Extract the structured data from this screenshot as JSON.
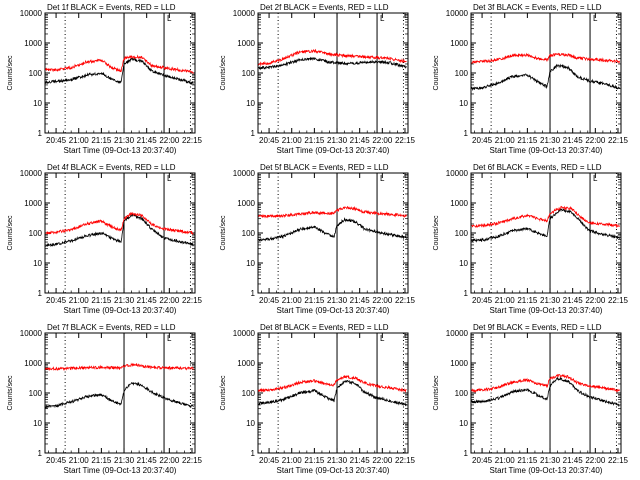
{
  "figure": {
    "date_label": "09-Oct-13",
    "colors": {
      "events": "#000000",
      "lld": "#ff0000",
      "axes": "#000000",
      "background": "#ffffff"
    }
  },
  "chart_data": [
    {
      "type": "line",
      "title": "Det 1f BLACK = Events, RED = LLD",
      "ylabel": "Counts/sec",
      "xlabel": "Start Time (09-Oct-13 20:37:40)",
      "y_scale": "log",
      "ylim": [
        1,
        10000
      ],
      "xlim": [
        "20:37:40",
        "22:17:00"
      ],
      "x_ticks": [
        "20:45",
        "21:00",
        "21:15",
        "21:30",
        "21:45",
        "22:00",
        "22:15"
      ],
      "y_ticks": [
        "1",
        "10",
        "100",
        "1000",
        "10000"
      ],
      "markers_solid": [
        "21:30:00",
        "21:56:30"
      ],
      "markers_dotted": [
        "20:51:00",
        "22:14:00"
      ],
      "corner_mark": "L",
      "series": [
        {
          "name": "Events",
          "color": "#000000",
          "x": [
            "20:38",
            "20:45",
            "20:55",
            "21:05",
            "21:15",
            "21:22",
            "21:28",
            "21:30",
            "21:35",
            "21:42",
            "21:48",
            "21:56",
            "22:05",
            "22:16"
          ],
          "values": [
            50,
            52,
            60,
            85,
            100,
            60,
            50,
            200,
            290,
            250,
            120,
            85,
            65,
            45
          ]
        },
        {
          "name": "LLD",
          "color": "#ff0000",
          "x": [
            "20:38",
            "20:45",
            "20:55",
            "21:05",
            "21:15",
            "21:22",
            "21:28",
            "21:30",
            "21:35",
            "21:42",
            "21:48",
            "21:56",
            "22:05",
            "22:16"
          ],
          "values": [
            130,
            125,
            150,
            230,
            270,
            150,
            120,
            300,
            350,
            330,
            180,
            150,
            130,
            105
          ]
        }
      ]
    },
    {
      "type": "line",
      "title": "Det 2f BLACK = Events, RED = LLD",
      "ylabel": "Counts/sec",
      "xlabel": "Start Time (09-Oct-13 20:37:40)",
      "y_scale": "log",
      "ylim": [
        1,
        10000
      ],
      "xlim": [
        "20:37:40",
        "22:17:00"
      ],
      "x_ticks": [
        "20:45",
        "21:00",
        "21:15",
        "21:30",
        "21:45",
        "22:00",
        "22:15"
      ],
      "y_ticks": [
        "1",
        "10",
        "100",
        "1000",
        "10000"
      ],
      "markers_solid": [
        "21:30:00",
        "21:56:30"
      ],
      "markers_dotted": [
        "20:51:00",
        "22:14:00"
      ],
      "corner_mark": "L",
      "series": [
        {
          "name": "Events",
          "color": "#000000",
          "x": [
            "20:38",
            "20:45",
            "20:55",
            "21:05",
            "21:15",
            "21:25",
            "21:35",
            "21:45",
            "21:56",
            "22:05",
            "22:16"
          ],
          "values": [
            150,
            155,
            190,
            270,
            300,
            230,
            210,
            220,
            240,
            220,
            160
          ]
        },
        {
          "name": "LLD",
          "color": "#ff0000",
          "x": [
            "20:38",
            "20:45",
            "20:55",
            "21:05",
            "21:15",
            "21:25",
            "21:35",
            "21:45",
            "21:56",
            "22:05",
            "22:16"
          ],
          "values": [
            200,
            210,
            300,
            500,
            550,
            430,
            380,
            350,
            330,
            300,
            240
          ]
        }
      ]
    },
    {
      "type": "line",
      "title": "Det 3f BLACK = Events, RED = LLD",
      "ylabel": "Counts/sec",
      "xlabel": "Start Time (09-Oct-13 20:37:40)",
      "y_scale": "log",
      "ylim": [
        1,
        10000
      ],
      "xlim": [
        "20:37:40",
        "22:17:00"
      ],
      "x_ticks": [
        "20:45",
        "21:00",
        "21:15",
        "21:30",
        "21:45",
        "22:00",
        "22:15"
      ],
      "y_ticks": [
        "1",
        "10",
        "100",
        "1000",
        "10000"
      ],
      "markers_solid": [
        "21:30:00",
        "21:56:30"
      ],
      "markers_dotted": [
        "20:51:00",
        "22:14:00"
      ],
      "corner_mark": "L",
      "series": [
        {
          "name": "Events",
          "color": "#000000",
          "x": [
            "20:38",
            "20:45",
            "20:55",
            "21:05",
            "21:15",
            "21:22",
            "21:28",
            "21:30",
            "21:35",
            "21:42",
            "21:48",
            "21:56",
            "22:05",
            "22:16"
          ],
          "values": [
            30,
            32,
            45,
            75,
            85,
            50,
            35,
            110,
            180,
            150,
            75,
            55,
            45,
            30
          ]
        },
        {
          "name": "LLD",
          "color": "#ff0000",
          "x": [
            "20:38",
            "20:45",
            "20:55",
            "21:05",
            "21:15",
            "21:22",
            "21:28",
            "21:30",
            "21:35",
            "21:42",
            "21:48",
            "21:56",
            "22:05",
            "22:16"
          ],
          "values": [
            230,
            240,
            280,
            380,
            400,
            300,
            270,
            380,
            420,
            400,
            320,
            290,
            270,
            240
          ]
        }
      ]
    },
    {
      "type": "line",
      "title": "Det 4f BLACK = Events, RED = LLD",
      "ylabel": "Counts/sec",
      "xlabel": "Start Time (09-Oct-13 20:37:40)",
      "y_scale": "log",
      "ylim": [
        1,
        10000
      ],
      "xlim": [
        "20:37:40",
        "22:17:00"
      ],
      "x_ticks": [
        "20:45",
        "21:00",
        "21:15",
        "21:30",
        "21:45",
        "22:00",
        "22:15"
      ],
      "y_ticks": [
        "1",
        "10",
        "100",
        "1000",
        "10000"
      ],
      "markers_solid": [
        "21:30:00",
        "21:56:30"
      ],
      "markers_dotted": [
        "20:51:00",
        "22:14:00"
      ],
      "corner_mark": "L",
      "series": [
        {
          "name": "Events",
          "color": "#000000",
          "x": [
            "20:38",
            "20:45",
            "20:55",
            "21:05",
            "21:15",
            "21:22",
            "21:28",
            "21:30",
            "21:35",
            "21:42",
            "21:48",
            "21:56",
            "22:05",
            "22:16"
          ],
          "values": [
            40,
            42,
            55,
            80,
            100,
            65,
            50,
            250,
            400,
            300,
            140,
            70,
            55,
            40
          ]
        },
        {
          "name": "LLD",
          "color": "#ff0000",
          "x": [
            "20:38",
            "20:45",
            "20:55",
            "21:05",
            "21:15",
            "21:22",
            "21:28",
            "21:30",
            "21:35",
            "21:42",
            "21:48",
            "21:56",
            "22:05",
            "22:16"
          ],
          "values": [
            100,
            105,
            130,
            200,
            250,
            160,
            120,
            300,
            450,
            380,
            200,
            140,
            120,
            100
          ]
        }
      ]
    },
    {
      "type": "line",
      "title": "Det 5f BLACK = Events, RED = LLD",
      "ylabel": "Counts/sec",
      "xlabel": "Start Time (09-Oct-13 20:37:40)",
      "y_scale": "log",
      "ylim": [
        1,
        10000
      ],
      "xlim": [
        "20:37:40",
        "22:17:00"
      ],
      "x_ticks": [
        "20:45",
        "21:00",
        "21:15",
        "21:30",
        "21:45",
        "22:00",
        "22:15"
      ],
      "y_ticks": [
        "1",
        "10",
        "100",
        "1000",
        "10000"
      ],
      "markers_solid": [
        "21:30:00",
        "21:56:30"
      ],
      "markers_dotted": [
        "20:51:00",
        "22:14:00"
      ],
      "corner_mark": "L",
      "series": [
        {
          "name": "Events",
          "color": "#000000",
          "x": [
            "20:38",
            "20:45",
            "20:55",
            "21:05",
            "21:15",
            "21:22",
            "21:28",
            "21:30",
            "21:35",
            "21:42",
            "21:48",
            "21:56",
            "22:05",
            "22:16"
          ],
          "values": [
            60,
            62,
            80,
            130,
            160,
            100,
            75,
            180,
            280,
            240,
            140,
            110,
            90,
            70
          ]
        },
        {
          "name": "LLD",
          "color": "#ff0000",
          "x": [
            "20:38",
            "20:45",
            "20:55",
            "21:05",
            "21:15",
            "21:22",
            "21:28",
            "21:30",
            "21:35",
            "21:42",
            "21:48",
            "21:56",
            "22:05",
            "22:16"
          ],
          "values": [
            360,
            360,
            380,
            430,
            480,
            460,
            450,
            560,
            700,
            650,
            500,
            460,
            420,
            370
          ]
        }
      ]
    },
    {
      "type": "line",
      "title": "Det 6f BLACK = Events, RED = LLD",
      "ylabel": "Counts/sec",
      "xlabel": "Start Time (09-Oct-13 20:37:40)",
      "y_scale": "log",
      "ylim": [
        1,
        10000
      ],
      "xlim": [
        "20:37:40",
        "22:17:00"
      ],
      "x_ticks": [
        "20:45",
        "21:00",
        "21:15",
        "21:30",
        "21:45",
        "22:00",
        "22:15"
      ],
      "y_ticks": [
        "1",
        "10",
        "100",
        "1000",
        "10000"
      ],
      "markers_solid": [
        "21:30:00",
        "21:56:30"
      ],
      "markers_dotted": [
        "20:51:00",
        "22:14:00"
      ],
      "corner_mark": "L",
      "series": [
        {
          "name": "Events",
          "color": "#000000",
          "x": [
            "20:38",
            "20:45",
            "20:55",
            "21:05",
            "21:15",
            "21:22",
            "21:28",
            "21:30",
            "21:37",
            "21:44",
            "21:50",
            "21:56",
            "22:05",
            "22:16"
          ],
          "values": [
            55,
            58,
            75,
            120,
            140,
            100,
            80,
            300,
            600,
            500,
            250,
            120,
            90,
            70
          ]
        },
        {
          "name": "LLD",
          "color": "#ff0000",
          "x": [
            "20:38",
            "20:45",
            "20:55",
            "21:05",
            "21:15",
            "21:22",
            "21:28",
            "21:30",
            "21:37",
            "21:44",
            "21:50",
            "21:56",
            "22:05",
            "22:16"
          ],
          "values": [
            170,
            175,
            210,
            300,
            380,
            300,
            250,
            450,
            700,
            650,
            350,
            220,
            200,
            170
          ]
        }
      ]
    },
    {
      "type": "line",
      "title": "Det 7f BLACK = Events, RED = LLD",
      "ylabel": "Counts/sec",
      "xlabel": "Start Time (09-Oct-13 20:37:40)",
      "y_scale": "log",
      "ylim": [
        1,
        10000
      ],
      "xlim": [
        "20:37:40",
        "22:17:00"
      ],
      "x_ticks": [
        "20:45",
        "21:00",
        "21:15",
        "21:30",
        "21:45",
        "22:00",
        "22:15"
      ],
      "y_ticks": [
        "1",
        "10",
        "100",
        "1000",
        "10000"
      ],
      "markers_solid": [
        "21:30:00",
        "21:56:30"
      ],
      "markers_dotted": [
        "20:51:00",
        "22:14:00"
      ],
      "corner_mark": "L",
      "series": [
        {
          "name": "Events",
          "color": "#000000",
          "x": [
            "20:38",
            "20:45",
            "20:55",
            "21:05",
            "21:15",
            "21:22",
            "21:28",
            "21:30",
            "21:35",
            "21:42",
            "21:48",
            "21:56",
            "22:05",
            "22:16"
          ],
          "values": [
            35,
            38,
            50,
            75,
            90,
            55,
            40,
            120,
            220,
            180,
            110,
            70,
            50,
            35
          ]
        },
        {
          "name": "LLD",
          "color": "#ff0000",
          "x": [
            "20:38",
            "20:45",
            "20:55",
            "21:05",
            "21:15",
            "21:22",
            "21:28",
            "21:30",
            "21:35",
            "21:42",
            "21:48",
            "21:56",
            "22:05",
            "22:16"
          ],
          "values": [
            650,
            640,
            660,
            700,
            720,
            700,
            680,
            800,
            850,
            800,
            720,
            700,
            680,
            650
          ]
        }
      ]
    },
    {
      "type": "line",
      "title": "Det 8f BLACK = Events, RED = LLD",
      "ylabel": "Counts/sec",
      "xlabel": "Start Time (09-Oct-13 20:37:40)",
      "y_scale": "log",
      "ylim": [
        1,
        10000
      ],
      "xlim": [
        "20:37:40",
        "22:17:00"
      ],
      "x_ticks": [
        "20:45",
        "21:00",
        "21:15",
        "21:30",
        "21:45",
        "22:00",
        "22:15"
      ],
      "y_ticks": [
        "1",
        "10",
        "100",
        "1000",
        "10000"
      ],
      "markers_solid": [
        "21:30:00",
        "21:56:30"
      ],
      "markers_dotted": [
        "20:51:00",
        "22:14:00"
      ],
      "corner_mark": "L",
      "series": [
        {
          "name": "Events",
          "color": "#000000",
          "x": [
            "20:38",
            "20:45",
            "20:55",
            "21:05",
            "21:15",
            "21:22",
            "21:28",
            "21:30",
            "21:35",
            "21:42",
            "21:48",
            "21:56",
            "22:05",
            "22:16"
          ],
          "values": [
            45,
            48,
            60,
            100,
            120,
            75,
            55,
            150,
            250,
            210,
            110,
            70,
            55,
            40
          ]
        },
        {
          "name": "LLD",
          "color": "#ff0000",
          "x": [
            "20:38",
            "20:45",
            "20:55",
            "21:05",
            "21:15",
            "21:22",
            "21:28",
            "21:30",
            "21:35",
            "21:42",
            "21:48",
            "21:56",
            "22:05",
            "22:16"
          ],
          "values": [
            120,
            125,
            150,
            220,
            260,
            200,
            180,
            280,
            350,
            320,
            220,
            170,
            150,
            120
          ]
        }
      ]
    },
    {
      "type": "line",
      "title": "Det 9f BLACK = Events, RED = LLD",
      "ylabel": "Counts/sec",
      "xlabel": "Start Time (09-Oct-13 20:37:40)",
      "y_scale": "log",
      "ylim": [
        1,
        10000
      ],
      "xlim": [
        "20:37:40",
        "22:17:00"
      ],
      "x_ticks": [
        "20:45",
        "21:00",
        "21:15",
        "21:30",
        "21:45",
        "22:00",
        "22:15"
      ],
      "y_ticks": [
        "1",
        "10",
        "100",
        "1000",
        "10000"
      ],
      "markers_solid": [
        "21:30:00",
        "21:56:30"
      ],
      "markers_dotted": [
        "20:51:00",
        "22:14:00"
      ],
      "corner_mark": "L",
      "series": [
        {
          "name": "Events",
          "color": "#000000",
          "x": [
            "20:38",
            "20:45",
            "20:55",
            "21:05",
            "21:15",
            "21:22",
            "21:28",
            "21:30",
            "21:35",
            "21:42",
            "21:48",
            "21:56",
            "22:05",
            "22:16"
          ],
          "values": [
            50,
            52,
            65,
            110,
            130,
            85,
            60,
            180,
            300,
            250,
            120,
            75,
            55,
            40
          ]
        },
        {
          "name": "LLD",
          "color": "#ff0000",
          "x": [
            "20:38",
            "20:45",
            "20:55",
            "21:05",
            "21:15",
            "21:22",
            "21:28",
            "21:30",
            "21:35",
            "21:42",
            "21:48",
            "21:56",
            "22:05",
            "22:16"
          ],
          "values": [
            120,
            125,
            150,
            230,
            270,
            200,
            170,
            300,
            380,
            350,
            220,
            170,
            150,
            120
          ]
        }
      ]
    }
  ]
}
